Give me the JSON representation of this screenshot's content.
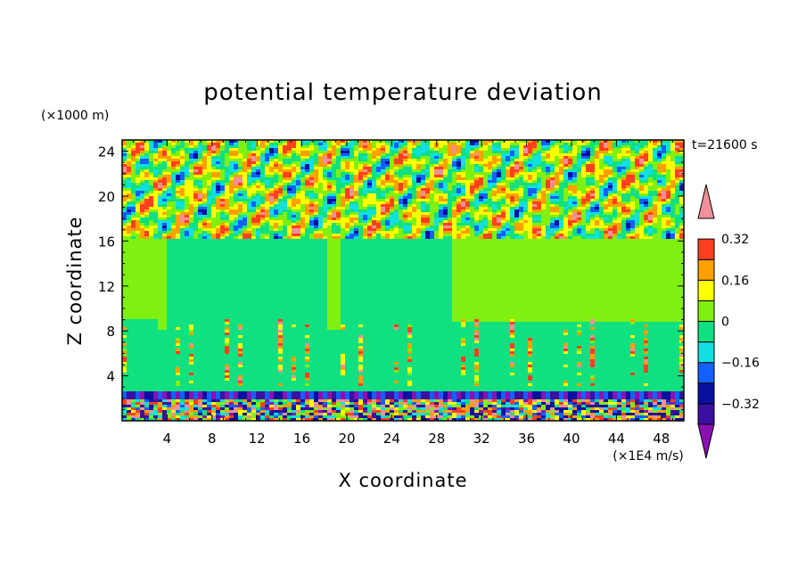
{
  "chart_data": {
    "type": "heatmap",
    "title": "potential temperature deviation",
    "xlabel": "X coordinate",
    "ylabel": "Z coordinate",
    "x_units": "(×1E4 m/s)",
    "y_units": "(×1000 m)",
    "time_label": "t=21600 s",
    "xlim": [
      0,
      50
    ],
    "ylim": [
      0,
      25
    ],
    "x_ticks": [
      4,
      8,
      12,
      16,
      20,
      24,
      28,
      32,
      36,
      40,
      44,
      48
    ],
    "y_ticks": [
      4,
      8,
      12,
      16,
      20,
      24
    ],
    "x_tick_labels": [
      "4",
      "8",
      "12",
      "16",
      "20",
      "24",
      "28",
      "32",
      "36",
      "40",
      "44",
      "48"
    ],
    "y_tick_labels": [
      "4",
      "8",
      "12",
      "16",
      "20",
      "24"
    ],
    "colorbar": {
      "levels": [
        -0.4,
        -0.32,
        -0.24,
        -0.16,
        -0.08,
        0,
        0.08,
        0.16,
        0.24,
        0.32,
        0.4
      ],
      "labels": [
        {
          "value": 0.32,
          "text": "0.32"
        },
        {
          "value": 0.16,
          "text": "0.16"
        },
        {
          "value": 0,
          "text": "0"
        },
        {
          "value": -0.16,
          "text": "−0.16"
        },
        {
          "value": -0.32,
          "text": "−0.32"
        }
      ],
      "colors": [
        "#8a10b0",
        "#3a10a0",
        "#0a10a0",
        "#1460ff",
        "#10e0e0",
        "#10e080",
        "#80f010",
        "#ffff00",
        "#ffa000",
        "#ff4020",
        "#f09098"
      ],
      "extend": "both"
    },
    "regions": [
      {
        "z_range": [
          0,
          2.5
        ],
        "description_value": "mixed -0.4 to 0.4"
      },
      {
        "z_range": [
          2.5,
          16
        ],
        "dominant_value": -0.04
      },
      {
        "z_range": [
          16,
          25
        ],
        "dominant_value": 0.04
      }
    ]
  }
}
